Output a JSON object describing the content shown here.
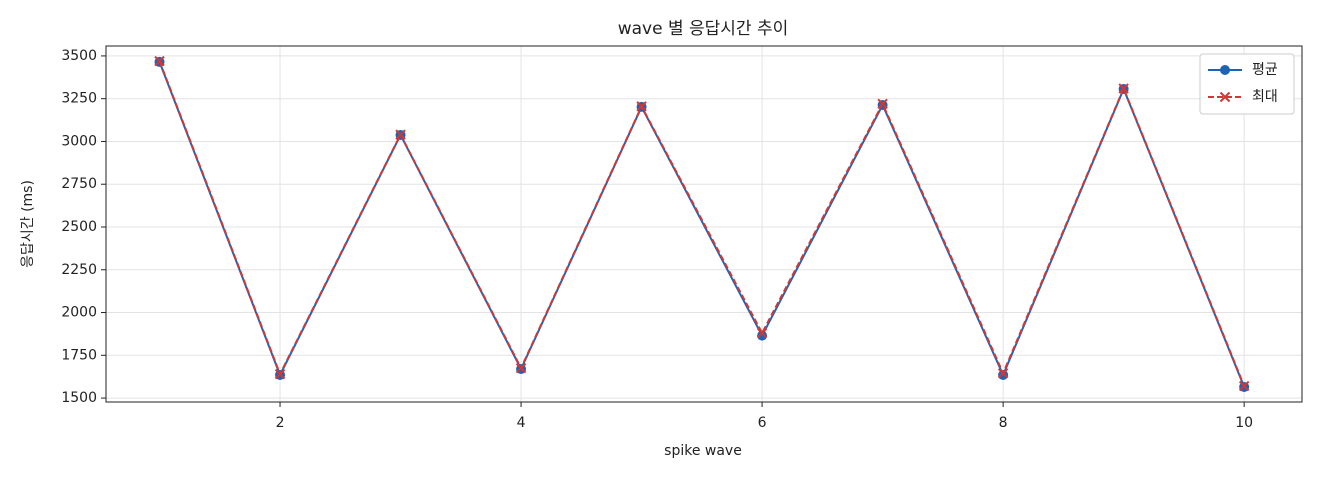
{
  "chart_data": {
    "type": "line",
    "title": "wave 별 응답시간 추이",
    "x_label": "spike wave",
    "y_label": "응답시간 (ms)",
    "x": [
      1,
      2,
      3,
      4,
      5,
      6,
      7,
      8,
      9,
      10
    ],
    "series": [
      {
        "name": "평균",
        "color": "#1f64b4",
        "marker": "circle",
        "dash": false,
        "values": [
          3465,
          1635,
          3038,
          1670,
          3202,
          1865,
          3213,
          1635,
          3307,
          1565
        ]
      },
      {
        "name": "최대",
        "color": "#d03838",
        "marker": "x",
        "dash": true,
        "values": [
          3470,
          1640,
          3040,
          1675,
          3205,
          1880,
          3220,
          1645,
          3310,
          1570
        ]
      }
    ],
    "xlim": [
      0.556,
      10.48
    ],
    "ylim": [
      1477,
      3558
    ],
    "xticks": [
      2,
      4,
      6,
      8,
      10
    ],
    "yticks": [
      1500,
      1750,
      2000,
      2250,
      2500,
      2750,
      3000,
      3250,
      3500
    ],
    "grid": true,
    "legend": "upper right"
  }
}
